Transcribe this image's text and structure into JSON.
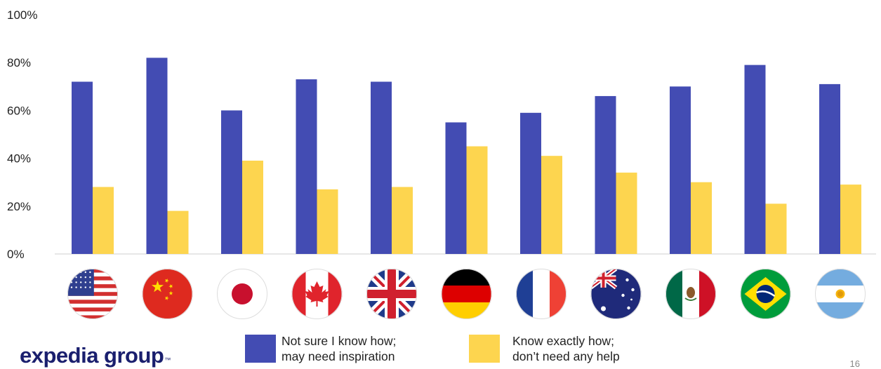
{
  "chart_data": {
    "type": "bar",
    "categories": [
      "United States",
      "China",
      "Japan",
      "Canada",
      "United Kingdom",
      "Germany",
      "France",
      "Australia",
      "Mexico",
      "Brazil",
      "Argentina"
    ],
    "series": [
      {
        "name": "Not sure I know how; may need inspiration",
        "color": "#434cb3",
        "values": [
          72,
          82,
          60,
          73,
          72,
          55,
          59,
          66,
          70,
          79,
          71
        ]
      },
      {
        "name": "Know exactly how; don’t need any help",
        "color": "#fdd54f",
        "values": [
          28,
          18,
          39,
          27,
          28,
          45,
          41,
          34,
          30,
          21,
          29
        ]
      }
    ],
    "ylim": [
      0,
      100
    ],
    "yticks": [
      "0%",
      "20%",
      "40%",
      "60%",
      "80%",
      "100%"
    ],
    "xlabel": "",
    "ylabel": "",
    "grid": false,
    "legend_position": "bottom",
    "category_icons": [
      "us-flag-icon",
      "china-flag-icon",
      "japan-flag-icon",
      "canada-flag-icon",
      "uk-flag-icon",
      "germany-flag-icon",
      "france-flag-icon",
      "australia-flag-icon",
      "mexico-flag-icon",
      "brazil-flag-icon",
      "argentina-flag-icon"
    ]
  },
  "legend": {
    "item1_line1": "Not sure I know how;",
    "item1_line2": "may need inspiration",
    "item2_line1": "Know exactly how;",
    "item2_line2": "don’t need any help"
  },
  "logo": {
    "text": "expedia group",
    "mark": "™",
    "color": "#1a1f6e"
  },
  "page_number": "16"
}
